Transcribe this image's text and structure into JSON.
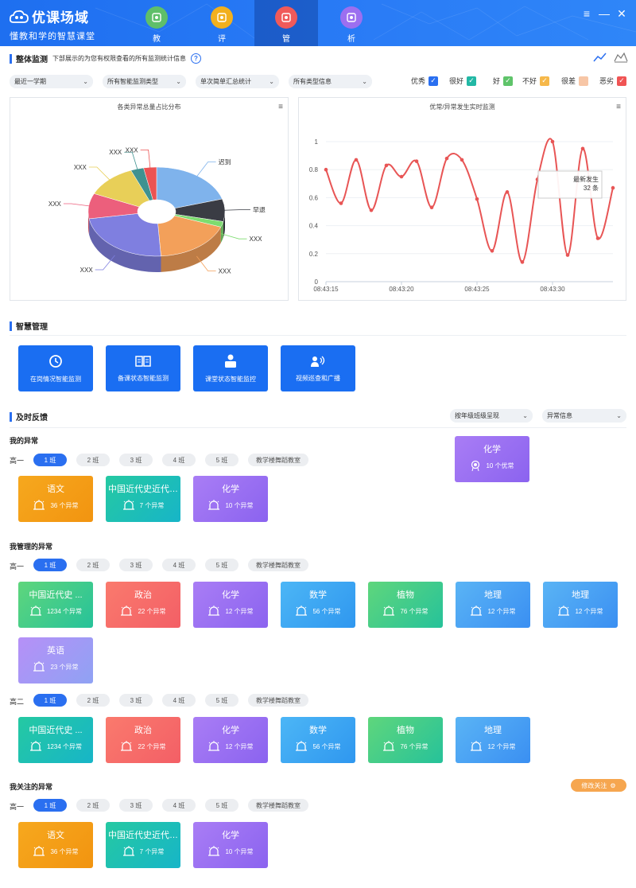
{
  "app": {
    "title": "优课场域",
    "subtitle": "懂教和学的智慧课堂",
    "logo_small": "Excellent Class Field"
  },
  "nav": [
    {
      "label": "教",
      "icon": "teach-icon",
      "color": "#5fbf6a"
    },
    {
      "label": "评",
      "icon": "evaluate-icon",
      "color": "#f2b01e"
    },
    {
      "label": "管",
      "icon": "manage-icon",
      "color": "#f05a5a",
      "active": true
    },
    {
      "label": "析",
      "icon": "analyze-icon",
      "color": "#9c6ff0"
    }
  ],
  "overview": {
    "title": "整体监测",
    "desc": "下部展示的为您有权限查看的所有监测统计信息",
    "help": "?"
  },
  "filters": [
    {
      "label": "最近一学期"
    },
    {
      "label": "所有智能监测类型"
    },
    {
      "label": "单次简单汇总统计"
    },
    {
      "label": "所有类型信息"
    }
  ],
  "legend": [
    {
      "label": "优秀",
      "color": "#2a6ff0",
      "checked": true
    },
    {
      "label": "很好",
      "color": "#22b8a5",
      "checked": true
    },
    {
      "label": "好",
      "color": "#5fc46a",
      "checked": true
    },
    {
      "label": "不好",
      "color": "#f6b84a",
      "checked": true
    },
    {
      "label": "很差",
      "color": "#f7c6a6",
      "checked": false
    },
    {
      "label": "恶劣",
      "color": "#f05454",
      "checked": true
    }
  ],
  "chart_data": [
    {
      "type": "pie",
      "title": "各类异常总量占比分布",
      "labels": [
        "迟到",
        "早退",
        "XXX",
        "XXX",
        "XXX",
        "XXX",
        "XXX",
        "XXX",
        "XXX"
      ],
      "colors": [
        "#7fb3ec",
        "#3a3c44",
        "#7ddc6f",
        "#f3a05a",
        "#7f7fe0",
        "#ec5f7c",
        "#e8cf58",
        "#3f9290",
        "#ec5353"
      ],
      "values": [
        20,
        8,
        2,
        18,
        23,
        9,
        12,
        3,
        3
      ]
    },
    {
      "type": "line",
      "title": "优常/异常发生实时监测",
      "xlabel": "",
      "ylabel": "",
      "ylim": [
        0,
        1
      ],
      "yticks": [
        "0",
        "0.2",
        "0.4",
        "0.6",
        "0.8",
        "1"
      ],
      "xticks": [
        "08:43:15",
        "08:43:20",
        "08:43:25",
        "08:43:30"
      ],
      "y": [
        0.8,
        0.56,
        0.87,
        0.51,
        0.83,
        0.75,
        0.86,
        0.53,
        0.88,
        0.87,
        0.59,
        0.22,
        0.64,
        0.14,
        0.73,
        1.0,
        0.19,
        0.95,
        0.31,
        0.67
      ],
      "color": "#e85555",
      "tooltip": {
        "line1": "最新发生",
        "line2": "32 条"
      }
    }
  ],
  "smart": {
    "title": "智慧管理",
    "buttons": [
      {
        "label": "在岗情况智能监测",
        "icon": "clock-icon"
      },
      {
        "label": "备课状态智能监测",
        "icon": "book-icon"
      },
      {
        "label": "课堂状态智能监控",
        "icon": "student-icon"
      },
      {
        "label": "视频巡查和广播",
        "icon": "broadcast-icon"
      }
    ]
  },
  "feedback": {
    "title": "及时反馈",
    "select1": "按年级班级呈现",
    "select2": "异常信息"
  },
  "classes": [
    "1 班",
    "2 班",
    "3 班",
    "4 班",
    "5 班",
    "教学楼舞蹈教室"
  ],
  "mine": {
    "title": "我的异常",
    "grade": "高一",
    "cards": [
      {
        "name": "语文",
        "count": "36 个异常",
        "theme": "orange"
      },
      {
        "name": "中国近代史近代近 ...",
        "count": "7 个异常",
        "theme": "teal"
      },
      {
        "name": "化学",
        "count": "10 个异常",
        "theme": "purple"
      }
    ],
    "excellent": {
      "name": "化学",
      "count": "10 个优常"
    }
  },
  "managed": {
    "title": "我管理的异常",
    "g1": {
      "grade": "高一",
      "cards": [
        {
          "name": "中国近代史 ...",
          "count": "1234 个异常",
          "theme": "green"
        },
        {
          "name": "政治",
          "count": "22 个异常",
          "theme": "red"
        },
        {
          "name": "化学",
          "count": "12 个异常",
          "theme": "purple"
        },
        {
          "name": "数学",
          "count": "56 个异常",
          "theme": "blue"
        },
        {
          "name": "植物",
          "count": "76 个异常",
          "theme": "green"
        },
        {
          "name": "地理",
          "count": "12 个异常",
          "theme": "sky"
        },
        {
          "name": "地理",
          "count": "12 个异常",
          "theme": "sky"
        },
        {
          "name": "英语",
          "count": "23 个异常",
          "theme": "lav"
        }
      ]
    },
    "g2": {
      "grade": "高二",
      "cards": [
        {
          "name": "中国近代史 ...",
          "count": "1234 个异常",
          "theme": "teal"
        },
        {
          "name": "政治",
          "count": "22 个异常",
          "theme": "red"
        },
        {
          "name": "化学",
          "count": "12 个异常",
          "theme": "purple"
        },
        {
          "name": "数学",
          "count": "56 个异常",
          "theme": "blue"
        },
        {
          "name": "植物",
          "count": "76 个异常",
          "theme": "green"
        },
        {
          "name": "地理",
          "count": "12 个异常",
          "theme": "sky"
        }
      ]
    }
  },
  "followed": {
    "title": "我关注的异常",
    "grade": "高一",
    "edit": "修改关注",
    "cards": [
      {
        "name": "语文",
        "count": "36 个异常",
        "theme": "orange"
      },
      {
        "name": "中国近代史近代近 ...",
        "count": "7 个异常",
        "theme": "teal"
      },
      {
        "name": "化学",
        "count": "10 个异常",
        "theme": "purple"
      }
    ]
  }
}
